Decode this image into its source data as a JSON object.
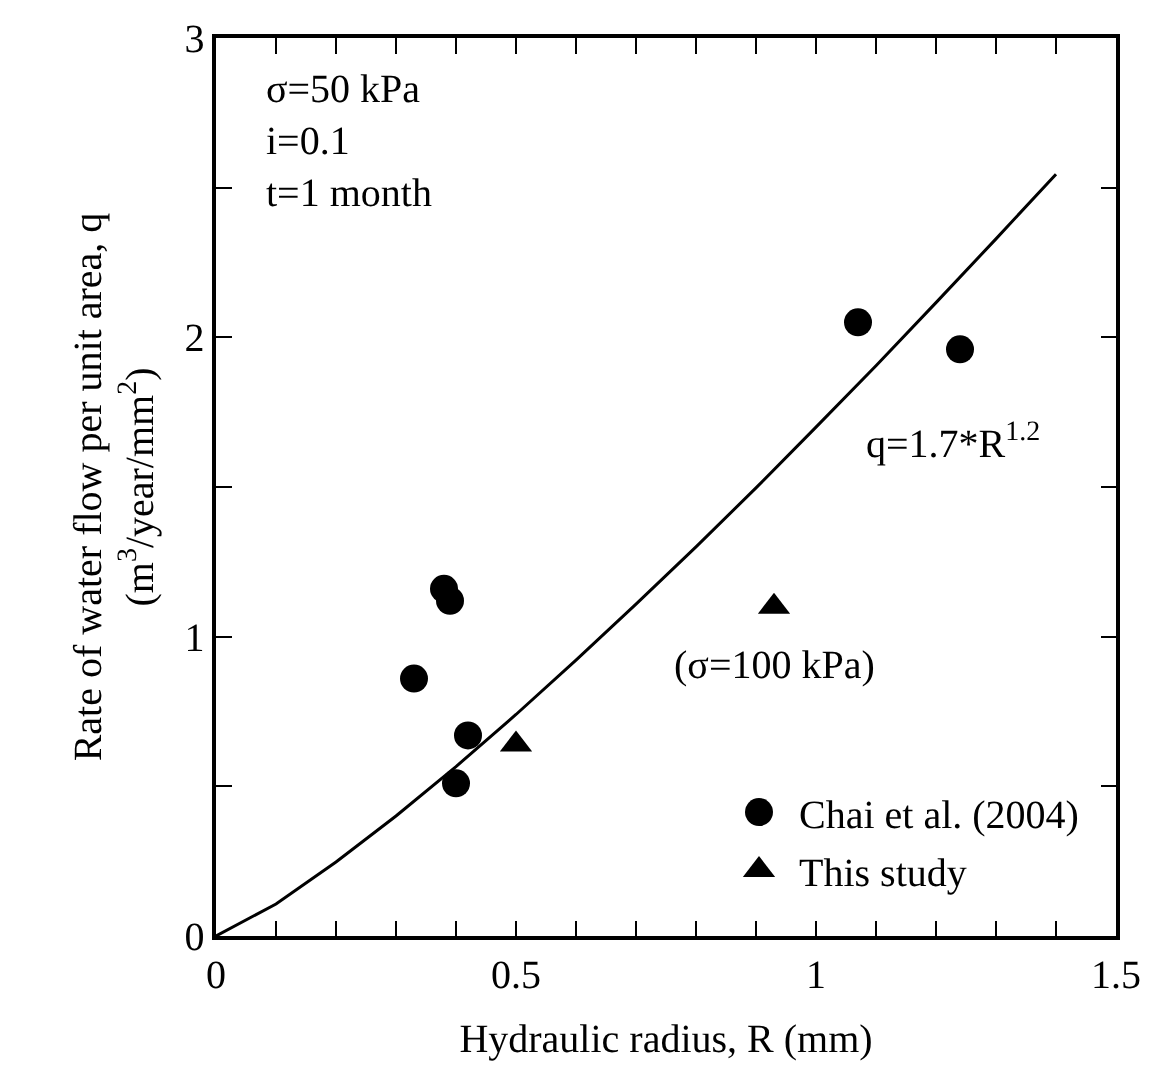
{
  "chart_data": {
    "type": "scatter",
    "xlabel": "Hydraulic radius, R (mm)",
    "ylabel": "Rate of water flow per unit area, q\n(m$^{3}$/year/mm$^{2}$)",
    "xlim": [
      0,
      1.5
    ],
    "ylim": [
      0,
      3
    ],
    "xticks": [
      0,
      {
        "value": 0.1,
        "label": null
      },
      {
        "value": 0.2,
        "label": null
      },
      {
        "value": 0.3,
        "label": null
      },
      {
        "value": 0.4,
        "label": null
      },
      0.5,
      {
        "value": 0.6,
        "label": null
      },
      {
        "value": 0.7,
        "label": null
      },
      {
        "value": 0.8,
        "label": null
      },
      {
        "value": 0.9,
        "label": null
      },
      1,
      {
        "value": 1.1,
        "label": null
      },
      {
        "value": 1.2,
        "label": null
      },
      {
        "value": 1.3,
        "label": null
      },
      {
        "value": 1.4,
        "label": null
      },
      1.5
    ],
    "yticks": [
      0,
      {
        "value": 0.5,
        "label": null
      },
      1,
      {
        "value": 1.5,
        "label": null
      },
      2,
      {
        "value": 2.5,
        "label": null
      },
      3
    ],
    "grid": false,
    "legend": "bottom right",
    "series": [
      {
        "name": "Chai et al. (2004)",
        "color": "#000000",
        "marker": "circle",
        "x": [
          0.33,
          0.38,
          0.39,
          0.4,
          0.42,
          1.07,
          1.24
        ],
        "values": [
          0.86,
          1.16,
          1.12,
          0.51,
          0.67,
          2.05,
          1.96
        ]
      },
      {
        "name": "This study",
        "color": "#000000",
        "marker": "triangle",
        "x": [
          0.5,
          0.93
        ],
        "values": [
          0.64,
          1.1
        ]
      },
      {
        "type": "line",
        "color": "#000000",
        "line_style": "solid",
        "x": [
          0,
          0.1,
          0.2,
          0.3,
          0.4,
          0.5,
          0.6,
          0.7,
          0.8,
          0.9,
          1,
          1.1,
          1.2,
          1.3,
          1.4
        ],
        "values": [
          0,
          0.107,
          0.247,
          0.401,
          0.566,
          0.74,
          0.922,
          1.109,
          1.3,
          1.497,
          1.7,
          1.905,
          2.116,
          2.329,
          2.545
        ]
      }
    ],
    "annotations": [
      "σ=50 kPa\ni=0.1\nt=1 month",
      "q=1.7*R$^{1.2}$",
      "(σ=100 kPa)"
    ]
  }
}
